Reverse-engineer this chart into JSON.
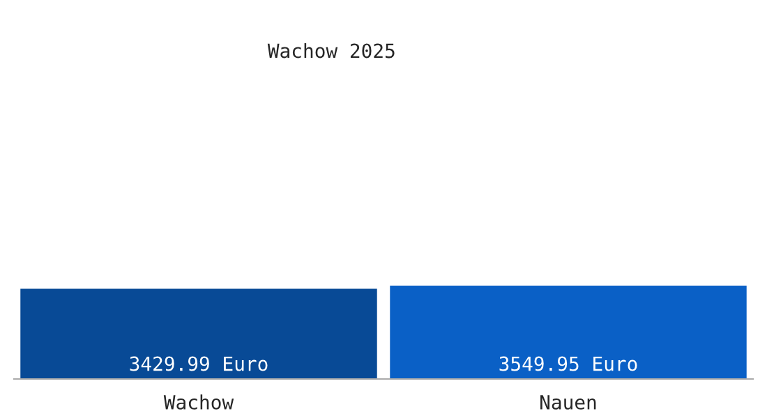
{
  "chart_data": {
    "type": "bar",
    "title": "Wachow 2025",
    "categories": [
      "Wachow",
      "Nauen"
    ],
    "values": [
      3429.99,
      3549.95
    ],
    "colors": [
      "#084a96",
      "#0a60c6"
    ],
    "value_labels": [
      "3429.99 Euro",
      "3549.95 Euro"
    ],
    "grid": false,
    "legend": false
  }
}
